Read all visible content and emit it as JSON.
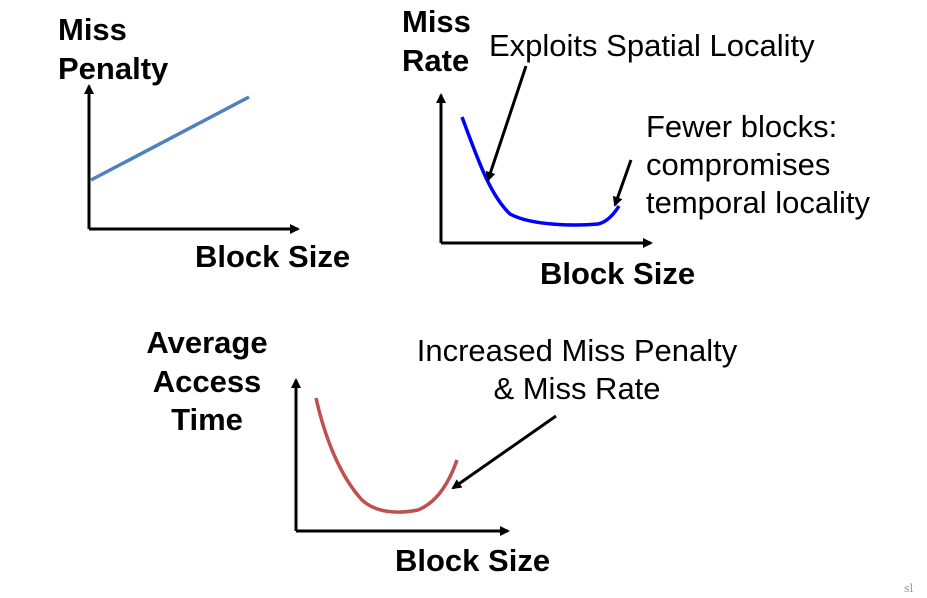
{
  "panels": {
    "miss_penalty": {
      "y_label_line1": "Miss",
      "y_label_line2": "Penalty",
      "x_label": "Block Size",
      "curve_color": "#4f81bd"
    },
    "miss_rate": {
      "y_label_line1": "Miss",
      "y_label_line2": "Rate",
      "x_label": "Block Size",
      "curve_color": "#0000ff",
      "annotation_spatial": "Exploits Spatial Locality",
      "annotation_temporal_line1": "Fewer blocks:",
      "annotation_temporal_line2": "compromises",
      "annotation_temporal_line3": "temporal locality"
    },
    "avg_access_time": {
      "y_label_line1": "Average",
      "y_label_line2": "Access",
      "y_label_line3": "Time",
      "x_label": "Block Size",
      "curve_color": "#c0504d",
      "annotation_line1": "Increased Miss Penalty",
      "annotation_line2": "& Miss Rate"
    }
  },
  "corner_mark": "sl"
}
